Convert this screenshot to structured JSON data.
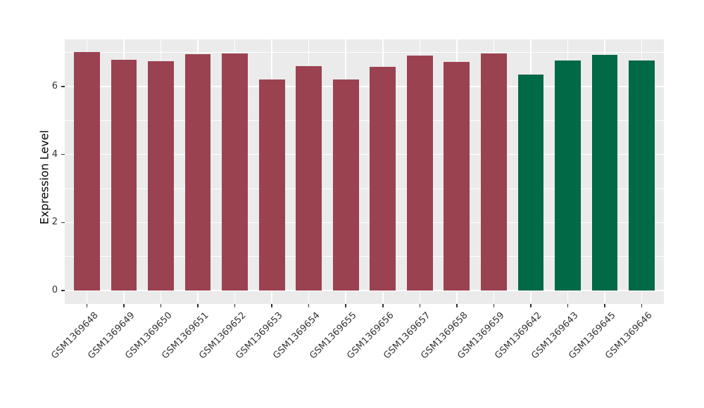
{
  "chart_data": {
    "type": "bar",
    "title": "",
    "xlabel": "",
    "ylabel": "Expression Level",
    "categories": [
      "GSM1369648",
      "GSM1369649",
      "GSM1369650",
      "GSM1369651",
      "GSM1369652",
      "GSM1369653",
      "GSM1369654",
      "GSM1369655",
      "GSM1369656",
      "GSM1369657",
      "GSM1369658",
      "GSM1369659",
      "GSM1369642",
      "GSM1369643",
      "GSM1369645",
      "GSM1369646"
    ],
    "values": [
      7.01,
      6.78,
      6.74,
      6.95,
      6.97,
      6.21,
      6.61,
      6.2,
      6.59,
      6.91,
      6.72,
      6.98,
      6.35,
      6.76,
      6.93,
      6.76
    ],
    "bar_groups": [
      "maroon",
      "maroon",
      "maroon",
      "maroon",
      "maroon",
      "maroon",
      "maroon",
      "maroon",
      "maroon",
      "maroon",
      "maroon",
      "maroon",
      "green",
      "green",
      "green",
      "green"
    ],
    "group_colors": {
      "maroon": "#9B4250",
      "green": "#006946"
    },
    "yticks": [
      0,
      2,
      4,
      6
    ],
    "ytick_labels": [
      "0",
      "2",
      "4",
      "6"
    ],
    "yticks_minor": [
      1,
      3,
      5,
      7
    ],
    "ylim": [
      0,
      7.39
    ],
    "grid": true,
    "legend": false,
    "panel_background": "#EBEBEB",
    "grid_color": "#FFFFFF",
    "tick_text_color": "#333333",
    "tick_mark_color": "#333333"
  }
}
